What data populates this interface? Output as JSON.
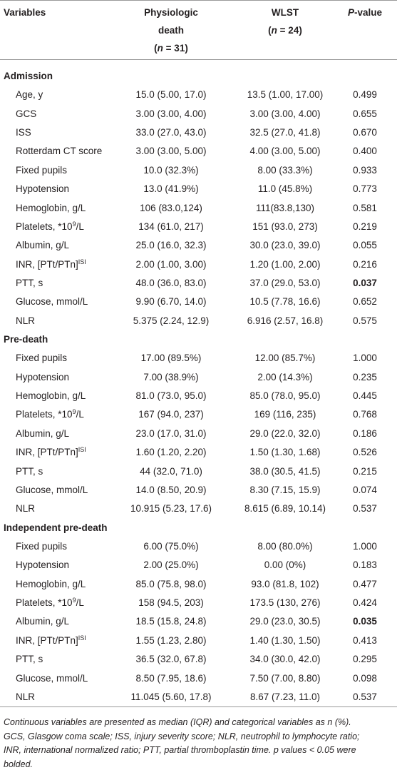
{
  "header": {
    "columns": [
      [
        [
          "Variables"
        ]
      ],
      [
        [
          "Physiologic"
        ],
        [
          "death"
        ],
        [
          "(",
          {
            "i": "n"
          },
          " = 31)"
        ]
      ],
      [
        [
          "WLST"
        ],
        [
          "(",
          {
            "i": "n"
          },
          " = 24)"
        ]
      ],
      [
        [
          {
            "i": "P"
          },
          "-value"
        ]
      ]
    ]
  },
  "sections": [
    {
      "title": "Admission",
      "rows": [
        {
          "label": [
            "Age, y"
          ],
          "physiologic": "15.0 (5.00, 17.0)",
          "wlst": "13.5 (1.00, 17.00)",
          "p": "0.499"
        },
        {
          "label": [
            "GCS"
          ],
          "physiologic": "3.00 (3.00, 4.00)",
          "wlst": "3.00 (3.00, 4.00)",
          "p": "0.655"
        },
        {
          "label": [
            "ISS"
          ],
          "physiologic": "33.0 (27.0, 43.0)",
          "wlst": "32.5 (27.0, 41.8)",
          "p": "0.670"
        },
        {
          "label": [
            "Rotterdam CT score"
          ],
          "physiologic": "3.00 (3.00, 5.00)",
          "wlst": "4.00 (3.00, 5.00)",
          "p": "0.400"
        },
        {
          "label": [
            "Fixed pupils"
          ],
          "physiologic": "10.0 (32.3%)",
          "wlst": "8.00 (33.3%)",
          "p": "0.933"
        },
        {
          "label": [
            "Hypotension"
          ],
          "physiologic": "13.0 (41.9%)",
          "wlst": "11.0 (45.8%)",
          "p": "0.773"
        },
        {
          "label": [
            "Hemoglobin, g/L"
          ],
          "physiologic": "106 (83.0,124)",
          "wlst": "111(83.8,130)",
          "p": "0.581"
        },
        {
          "label": [
            "Platelets, *10",
            {
              "sup": "9"
            },
            "/L"
          ],
          "physiologic": "134 (61.0, 217)",
          "wlst": "151 (93.0, 273)",
          "p": "0.219"
        },
        {
          "label": [
            "Albumin, g/L"
          ],
          "physiologic": "25.0 (16.0, 32.3)",
          "wlst": "30.0 (23.0, 39.0)",
          "p": "0.055"
        },
        {
          "label": [
            "INR, [PTt/PTn]",
            {
              "sup": "ISI"
            }
          ],
          "physiologic": "2.00 (1.00, 3.00)",
          "wlst": "1.20 (1.00, 2.00)",
          "p": "0.216"
        },
        {
          "label": [
            "PTT, s"
          ],
          "physiologic": "48.0 (36.0, 83.0)",
          "wlst": "37.0 (29.0, 53.0)",
          "p": "0.037",
          "bold": true
        },
        {
          "label": [
            "Glucose, mmol/L"
          ],
          "physiologic": "9.90 (6.70, 14.0)",
          "wlst": "10.5 (7.78, 16.6)",
          "p": "0.652"
        },
        {
          "label": [
            "NLR"
          ],
          "physiologic": "5.375 (2.24, 12.9)",
          "wlst": "6.916 (2.57, 16.8)",
          "p": "0.575"
        }
      ]
    },
    {
      "title": "Pre-death",
      "rows": [
        {
          "label": [
            "Fixed pupils"
          ],
          "physiologic": "17.00 (89.5%)",
          "wlst": "12.00 (85.7%)",
          "p": "1.000"
        },
        {
          "label": [
            "Hypotension"
          ],
          "physiologic": "7.00 (38.9%)",
          "wlst": "2.00 (14.3%)",
          "p": "0.235"
        },
        {
          "label": [
            "Hemoglobin, g/L"
          ],
          "physiologic": "81.0 (73.0, 95.0)",
          "wlst": "85.0 (78.0, 95.0)",
          "p": "0.445"
        },
        {
          "label": [
            "Platelets, *10",
            {
              "sup": "9"
            },
            "/L"
          ],
          "physiologic": "167 (94.0, 237)",
          "wlst": "169 (116, 235)",
          "p": "0.768"
        },
        {
          "label": [
            "Albumin, g/L"
          ],
          "physiologic": "23.0 (17.0, 31.0)",
          "wlst": "29.0 (22.0, 32.0)",
          "p": "0.186"
        },
        {
          "label": [
            "INR, [PTt/PTn]",
            {
              "sup": "ISI"
            }
          ],
          "physiologic": "1.60 (1.20, 2.20)",
          "wlst": "1.50 (1.30, 1.68)",
          "p": "0.526"
        },
        {
          "label": [
            "PTT, s"
          ],
          "physiologic": "44 (32.0, 71.0)",
          "wlst": "38.0 (30.5, 41.5)",
          "p": "0.215"
        },
        {
          "label": [
            "Glucose, mmol/L"
          ],
          "physiologic": "14.0 (8.50, 20.9)",
          "wlst": "8.30 (7.15, 15.9)",
          "p": "0.074"
        },
        {
          "label": [
            "NLR"
          ],
          "physiologic": "10.915 (5.23, 17.6)",
          "wlst": "8.615 (6.89, 10.14)",
          "p": "0.537"
        }
      ]
    },
    {
      "title": "Independent pre-death",
      "rows": [
        {
          "label": [
            "Fixed pupils"
          ],
          "physiologic": "6.00 (75.0%)",
          "wlst": "8.00 (80.0%)",
          "p": "1.000"
        },
        {
          "label": [
            "Hypotension"
          ],
          "physiologic": "2.00 (25.0%)",
          "wlst": "0.00 (0%)",
          "p": "0.183"
        },
        {
          "label": [
            "Hemoglobin, g/L"
          ],
          "physiologic": "85.0 (75.8, 98.0)",
          "wlst": "93.0 (81.8, 102)",
          "p": "0.477"
        },
        {
          "label": [
            "Platelets, *10",
            {
              "sup": "9"
            },
            "/L"
          ],
          "physiologic": "158 (94.5, 203)",
          "wlst": "173.5 (130, 276)",
          "p": "0.424"
        },
        {
          "label": [
            "Albumin, g/L"
          ],
          "physiologic": "18.5 (15.8, 24.8)",
          "wlst": "29.0 (23.0, 30.5)",
          "p": "0.035",
          "bold": true
        },
        {
          "label": [
            "INR, [PTt/PTn]",
            {
              "sup": "ISI"
            }
          ],
          "physiologic": "1.55 (1.23, 2.80)",
          "wlst": "1.40 (1.30, 1.50)",
          "p": "0.413"
        },
        {
          "label": [
            "PTT, s"
          ],
          "physiologic": "36.5 (32.0, 67.8)",
          "wlst": "34.0 (30.0, 42.0)",
          "p": "0.295"
        },
        {
          "label": [
            "Glucose, mmol/L"
          ],
          "physiologic": "8.50 (7.95, 18.6)",
          "wlst": "7.50 (7.00, 8.80)",
          "p": "0.098"
        },
        {
          "label": [
            "NLR"
          ],
          "physiologic": "11.045 (5.60, 17.8)",
          "wlst": "8.67 (7.23, 11.0)",
          "p": "0.537"
        }
      ]
    }
  ],
  "footnote": [
    "Continuous variables are presented as median (IQR) and categorical variables as n (%).",
    "GCS, Glasgow coma scale; ISS, injury severity score; NLR, neutrophil to lymphocyte ratio;",
    "INR, international normalized ratio; PTT, partial thromboplastin time. p values < 0.05 were",
    "bolded."
  ]
}
